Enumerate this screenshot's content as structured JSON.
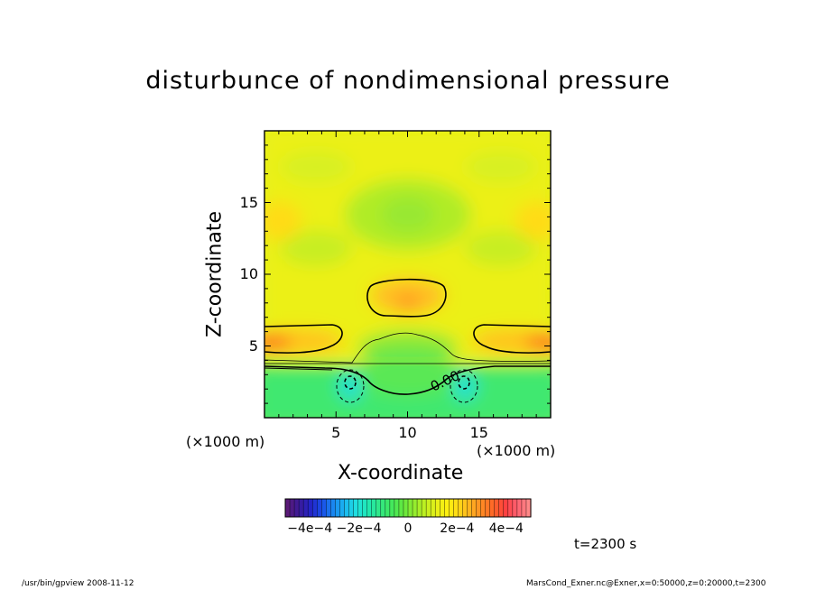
{
  "chart_data": {
    "type": "heatmap",
    "title": "disturbunce of nondimensional pressure",
    "xlabel": "X-coordinate",
    "ylabel": "Z-coordinate",
    "x_unit": "(×1000 m)",
    "z_unit": "(×1000 m)",
    "xlim": [
      0,
      20
    ],
    "ylim": [
      0,
      20
    ],
    "x_ticks": [
      "5",
      "10",
      "15"
    ],
    "y_ticks": [
      "5",
      "10",
      "15"
    ],
    "x_tick_values": [
      5,
      10,
      15
    ],
    "y_tick_values": [
      5,
      10,
      15
    ],
    "contour_label": "0.00",
    "colorbar": {
      "range": [
        -0.0005,
        0.0005
      ],
      "tick_labels": [
        "−4e−4",
        "−2e−4",
        "0",
        "2e−4",
        "4e−4"
      ],
      "tick_values": [
        -0.0004,
        -0.0002,
        0,
        0.0002,
        0.0004
      ],
      "colors": [
        "#5a1a78",
        "#3a1a9a",
        "#2424c8",
        "#1a4ee8",
        "#1a88f0",
        "#1ab8f0",
        "#20e0e0",
        "#20e8b4",
        "#30e888",
        "#40e860",
        "#60e840",
        "#90ec30",
        "#c0f020",
        "#e8f018",
        "#fff010",
        "#ffd418",
        "#ffb020",
        "#ff8824",
        "#ff6428",
        "#ff4040",
        "#ff6070",
        "#ff8888"
      ]
    },
    "grid": false
  },
  "time_label": "t=2300 s",
  "footer": {
    "left": "/usr/bin/gpview   2008-11-12",
    "right": "MarsCond_Exner.nc@Exner,x=0:50000,z=0:20000,t=2300"
  }
}
